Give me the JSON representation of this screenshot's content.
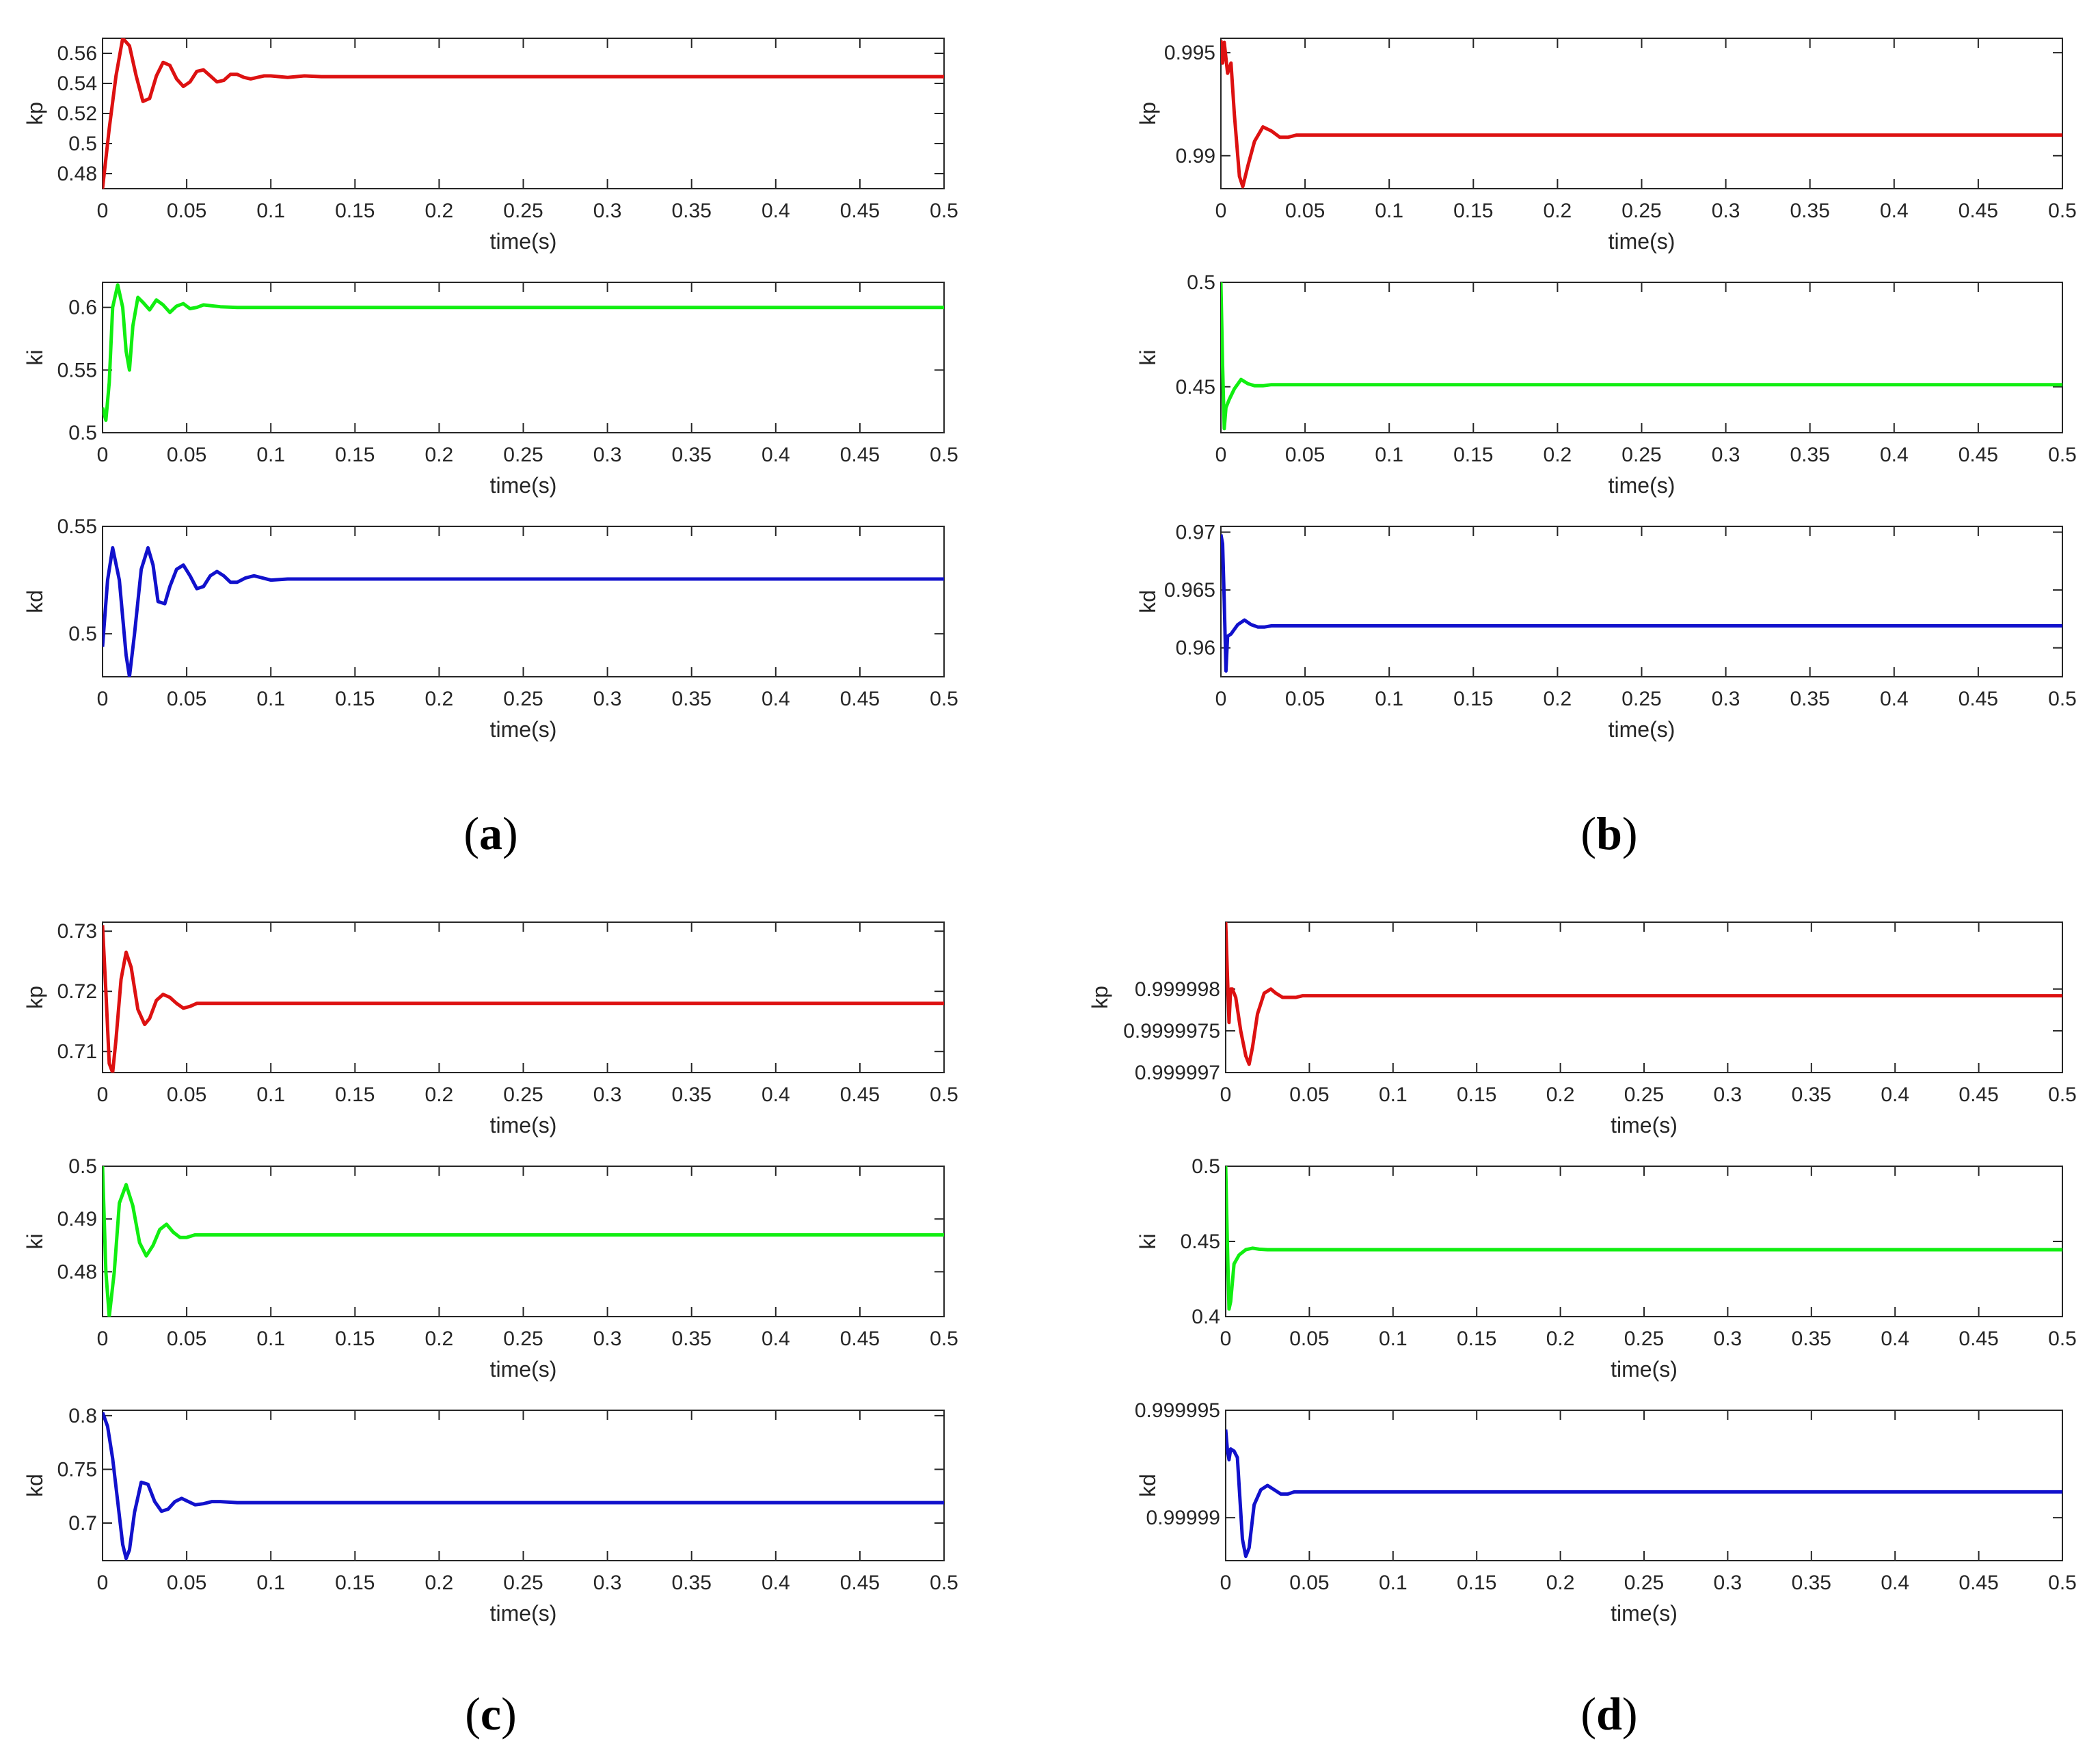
{
  "figure": {
    "xlabel": "time(s)",
    "x_tick_labels": [
      "0",
      "0.05",
      "0.1",
      "0.15",
      "0.2",
      "0.25",
      "0.3",
      "0.35",
      "0.4",
      "0.45",
      "0.5"
    ],
    "colors": {
      "kp": "#dd1111",
      "ki": "#11ee11",
      "kd": "#1111cc",
      "axes": "#262626",
      "background": "#ffffff"
    },
    "panel_labels": [
      "a",
      "b",
      "c",
      "d"
    ]
  },
  "chart_data": [
    {
      "type": "line",
      "panel": "a",
      "ylabel": "kp",
      "xlabel": "time(s)",
      "xlim": [
        0,
        0.5
      ],
      "ylim": [
        0.47,
        0.57
      ],
      "y_ticks": [
        0.48,
        0.5,
        0.52,
        0.54,
        0.56
      ],
      "y_tick_labels": [
        "0.48",
        "0.5",
        "0.52",
        "0.54",
        "0.56"
      ],
      "series": [
        {
          "name": "kp",
          "color": "#dd1111",
          "x": [
            0,
            0.004,
            0.008,
            0.012,
            0.016,
            0.02,
            0.024,
            0.028,
            0.032,
            0.036,
            0.04,
            0.044,
            0.048,
            0.052,
            0.056,
            0.06,
            0.064,
            0.068,
            0.072,
            0.076,
            0.08,
            0.084,
            0.088,
            0.092,
            0.096,
            0.1,
            0.11,
            0.12,
            0.13,
            0.14,
            0.15,
            0.2,
            0.3,
            0.4,
            0.5
          ],
          "y": [
            0.47,
            0.51,
            0.545,
            0.57,
            0.565,
            0.545,
            0.528,
            0.53,
            0.545,
            0.554,
            0.552,
            0.543,
            0.538,
            0.541,
            0.548,
            0.549,
            0.545,
            0.541,
            0.542,
            0.546,
            0.546,
            0.544,
            0.543,
            0.544,
            0.545,
            0.545,
            0.544,
            0.545,
            0.5445,
            0.5445,
            0.5445,
            0.5445,
            0.5445,
            0.5445,
            0.5445
          ]
        }
      ]
    },
    {
      "type": "line",
      "panel": "a",
      "ylabel": "ki",
      "xlabel": "time(s)",
      "xlim": [
        0,
        0.5
      ],
      "ylim": [
        0.5,
        0.62
      ],
      "y_ticks": [
        0.5,
        0.55,
        0.6
      ],
      "y_tick_labels": [
        "0.5",
        "0.55",
        "0.6"
      ],
      "series": [
        {
          "name": "ki",
          "color": "#11ee11",
          "x": [
            0,
            0.002,
            0.004,
            0.006,
            0.009,
            0.012,
            0.014,
            0.016,
            0.018,
            0.021,
            0.024,
            0.028,
            0.032,
            0.036,
            0.04,
            0.044,
            0.048,
            0.052,
            0.056,
            0.06,
            0.07,
            0.08,
            0.1,
            0.15,
            0.2,
            0.3,
            0.4,
            0.5
          ],
          "y": [
            0.52,
            0.51,
            0.54,
            0.6,
            0.618,
            0.6,
            0.565,
            0.55,
            0.585,
            0.608,
            0.604,
            0.598,
            0.606,
            0.602,
            0.596,
            0.601,
            0.603,
            0.599,
            0.6,
            0.602,
            0.6005,
            0.6,
            0.6,
            0.6,
            0.6,
            0.6,
            0.6,
            0.6
          ]
        }
      ]
    },
    {
      "type": "line",
      "panel": "a",
      "ylabel": "kd",
      "xlabel": "time(s)",
      "xlim": [
        0,
        0.5
      ],
      "ylim": [
        0.48,
        0.55
      ],
      "y_ticks": [
        0.5,
        0.55
      ],
      "y_tick_labels": [
        "0.5",
        "0.55"
      ],
      "series": [
        {
          "name": "kd",
          "color": "#1111cc",
          "x": [
            0,
            0.003,
            0.006,
            0.01,
            0.014,
            0.016,
            0.019,
            0.023,
            0.027,
            0.03,
            0.033,
            0.037,
            0.04,
            0.044,
            0.048,
            0.052,
            0.056,
            0.06,
            0.064,
            0.068,
            0.072,
            0.076,
            0.08,
            0.085,
            0.09,
            0.095,
            0.1,
            0.11,
            0.12,
            0.15,
            0.2,
            0.3,
            0.4,
            0.5
          ],
          "y": [
            0.494,
            0.525,
            0.54,
            0.525,
            0.49,
            0.48,
            0.5,
            0.53,
            0.54,
            0.532,
            0.515,
            0.514,
            0.522,
            0.53,
            0.532,
            0.527,
            0.521,
            0.522,
            0.527,
            0.529,
            0.527,
            0.524,
            0.524,
            0.526,
            0.527,
            0.526,
            0.525,
            0.5255,
            0.5255,
            0.5255,
            0.5255,
            0.5255,
            0.5255,
            0.5255
          ]
        }
      ]
    },
    {
      "type": "line",
      "panel": "b",
      "ylabel": "kp",
      "xlabel": "time(s)",
      "xlim": [
        0,
        0.5
      ],
      "ylim": [
        0.9884,
        0.9957
      ],
      "y_ticks": [
        0.99,
        0.995
      ],
      "y_tick_labels": [
        "0.99",
        "0.995"
      ],
      "series": [
        {
          "name": "kp",
          "color": "#dd1111",
          "x": [
            0,
            0.001,
            0.002,
            0.004,
            0.006,
            0.008,
            0.011,
            0.013,
            0.016,
            0.02,
            0.025,
            0.03,
            0.035,
            0.04,
            0.045,
            0.05,
            0.06,
            0.1,
            0.2,
            0.3,
            0.4,
            0.5
          ],
          "y": [
            0.9956,
            0.9945,
            0.9955,
            0.994,
            0.9945,
            0.992,
            0.989,
            0.9885,
            0.9895,
            0.9907,
            0.9914,
            0.9912,
            0.9909,
            0.9909,
            0.991,
            0.991,
            0.991,
            0.991,
            0.991,
            0.991,
            0.991,
            0.991
          ]
        }
      ]
    },
    {
      "type": "line",
      "panel": "b",
      "ylabel": "ki",
      "xlabel": "time(s)",
      "xlim": [
        0,
        0.5
      ],
      "ylim": [
        0.428,
        0.5
      ],
      "y_ticks": [
        0.45,
        0.5
      ],
      "y_tick_labels": [
        "0.45",
        "0.5"
      ],
      "series": [
        {
          "name": "ki",
          "color": "#11ee11",
          "x": [
            0,
            0.001,
            0.002,
            0.003,
            0.005,
            0.008,
            0.012,
            0.016,
            0.02,
            0.025,
            0.03,
            0.04,
            0.05,
            0.1,
            0.2,
            0.3,
            0.4,
            0.5
          ],
          "y": [
            0.5,
            0.46,
            0.43,
            0.44,
            0.444,
            0.449,
            0.4535,
            0.4515,
            0.4505,
            0.4505,
            0.451,
            0.451,
            0.451,
            0.451,
            0.451,
            0.451,
            0.451,
            0.451
          ]
        }
      ]
    },
    {
      "type": "line",
      "panel": "b",
      "ylabel": "kd",
      "xlabel": "time(s)",
      "xlim": [
        0,
        0.5
      ],
      "ylim": [
        0.9575,
        0.9705
      ],
      "y_ticks": [
        0.96,
        0.965,
        0.97
      ],
      "y_tick_labels": [
        "0.96",
        "0.965",
        "0.97"
      ],
      "series": [
        {
          "name": "kd",
          "color": "#1111cc",
          "x": [
            0,
            0.001,
            0.002,
            0.003,
            0.004,
            0.006,
            0.01,
            0.014,
            0.018,
            0.022,
            0.026,
            0.03,
            0.04,
            0.05,
            0.1,
            0.2,
            0.3,
            0.4,
            0.5
          ],
          "y": [
            0.9698,
            0.969,
            0.964,
            0.958,
            0.961,
            0.9612,
            0.962,
            0.9624,
            0.962,
            0.9618,
            0.9618,
            0.9619,
            0.9619,
            0.9619,
            0.9619,
            0.9619,
            0.9619,
            0.9619,
            0.9619
          ]
        }
      ]
    },
    {
      "type": "line",
      "panel": "c",
      "ylabel": "kp",
      "xlabel": "time(s)",
      "xlim": [
        0,
        0.5
      ],
      "ylim": [
        0.7065,
        0.7315
      ],
      "y_ticks": [
        0.71,
        0.72,
        0.73
      ],
      "y_tick_labels": [
        "0.71",
        "0.72",
        "0.73"
      ],
      "series": [
        {
          "name": "kp",
          "color": "#dd1111",
          "x": [
            0,
            0.002,
            0.004,
            0.006,
            0.008,
            0.011,
            0.014,
            0.017,
            0.021,
            0.025,
            0.028,
            0.032,
            0.036,
            0.04,
            0.044,
            0.048,
            0.052,
            0.056,
            0.06,
            0.065,
            0.07,
            0.08,
            0.1,
            0.2,
            0.3,
            0.4,
            0.5
          ],
          "y": [
            0.731,
            0.72,
            0.708,
            0.7065,
            0.712,
            0.722,
            0.7265,
            0.724,
            0.717,
            0.7145,
            0.7155,
            0.7185,
            0.7195,
            0.719,
            0.718,
            0.7172,
            0.7175,
            0.718,
            0.718,
            0.718,
            0.718,
            0.718,
            0.718,
            0.718,
            0.718,
            0.718,
            0.718
          ]
        }
      ]
    },
    {
      "type": "line",
      "panel": "c",
      "ylabel": "ki",
      "xlabel": "time(s)",
      "xlim": [
        0,
        0.5
      ],
      "ylim": [
        0.4715,
        0.5
      ],
      "y_ticks": [
        0.48,
        0.49,
        0.5
      ],
      "y_tick_labels": [
        "0.48",
        "0.49",
        "0.5"
      ],
      "series": [
        {
          "name": "ki",
          "color": "#11ee11",
          "x": [
            0,
            0.002,
            0.004,
            0.007,
            0.01,
            0.014,
            0.018,
            0.022,
            0.026,
            0.03,
            0.034,
            0.038,
            0.042,
            0.046,
            0.05,
            0.055,
            0.06,
            0.07,
            0.08,
            0.1,
            0.2,
            0.3,
            0.4,
            0.5
          ],
          "y": [
            0.5,
            0.48,
            0.4715,
            0.48,
            0.493,
            0.4965,
            0.4925,
            0.4855,
            0.483,
            0.485,
            0.488,
            0.489,
            0.4875,
            0.4865,
            0.4865,
            0.487,
            0.487,
            0.487,
            0.487,
            0.487,
            0.487,
            0.487,
            0.487,
            0.487
          ]
        }
      ]
    },
    {
      "type": "line",
      "panel": "c",
      "ylabel": "kd",
      "xlabel": "time(s)",
      "xlim": [
        0,
        0.5
      ],
      "ylim": [
        0.665,
        0.805
      ],
      "y_ticks": [
        0.7,
        0.75,
        0.8
      ],
      "y_tick_labels": [
        "0.7",
        "0.75",
        "0.8"
      ],
      "series": [
        {
          "name": "kd",
          "color": "#1111cc",
          "x": [
            0,
            0.003,
            0.006,
            0.009,
            0.012,
            0.014,
            0.016,
            0.019,
            0.023,
            0.027,
            0.031,
            0.035,
            0.039,
            0.043,
            0.047,
            0.051,
            0.055,
            0.06,
            0.065,
            0.07,
            0.08,
            0.1,
            0.2,
            0.3,
            0.4,
            0.5
          ],
          "y": [
            0.803,
            0.79,
            0.76,
            0.72,
            0.68,
            0.667,
            0.675,
            0.71,
            0.738,
            0.736,
            0.72,
            0.711,
            0.713,
            0.72,
            0.723,
            0.72,
            0.717,
            0.718,
            0.72,
            0.72,
            0.719,
            0.719,
            0.719,
            0.719,
            0.719,
            0.719
          ]
        }
      ]
    },
    {
      "type": "line",
      "panel": "d",
      "ylabel": "kp",
      "xlabel": "time(s)",
      "xlim": [
        0,
        0.5
      ],
      "ylim": [
        0.999997,
        0.9999988
      ],
      "y_ticks": [
        0.999997,
        0.9999975,
        0.999998
      ],
      "y_tick_labels": [
        "0.999997",
        "0.9999975",
        "0.999998"
      ],
      "series": [
        {
          "name": "kp",
          "color": "#dd1111",
          "x": [
            0,
            0.001,
            0.002,
            0.003,
            0.004,
            0.006,
            0.009,
            0.012,
            0.014,
            0.016,
            0.019,
            0.023,
            0.027,
            0.03,
            0.034,
            0.038,
            0.042,
            0.046,
            0.05,
            0.06,
            0.1,
            0.2,
            0.3,
            0.4,
            0.5
          ],
          "y": [
            0.9999988,
            0.9999982,
            0.9999976,
            0.999998,
            0.999998,
            0.9999979,
            0.9999975,
            0.9999972,
            0.9999971,
            0.9999973,
            0.9999977,
            0.99999795,
            0.999998,
            0.99999795,
            0.9999979,
            0.9999979,
            0.9999979,
            0.99999792,
            0.99999792,
            0.99999792,
            0.99999792,
            0.99999792,
            0.99999792,
            0.99999792,
            0.99999792
          ]
        }
      ]
    },
    {
      "type": "line",
      "panel": "d",
      "ylabel": "ki",
      "xlabel": "time(s)",
      "xlim": [
        0,
        0.5
      ],
      "ylim": [
        0.4,
        0.5
      ],
      "y_ticks": [
        0.4,
        0.45,
        0.5
      ],
      "y_tick_labels": [
        "0.4",
        "0.45",
        "0.5"
      ],
      "series": [
        {
          "name": "ki",
          "color": "#11ee11",
          "x": [
            0,
            0.001,
            0.002,
            0.003,
            0.005,
            0.008,
            0.012,
            0.016,
            0.02,
            0.025,
            0.03,
            0.05,
            0.1,
            0.2,
            0.3,
            0.4,
            0.5
          ],
          "y": [
            0.5,
            0.45,
            0.405,
            0.41,
            0.435,
            0.441,
            0.4445,
            0.4455,
            0.4448,
            0.4445,
            0.4445,
            0.4445,
            0.4445,
            0.4445,
            0.4445,
            0.4445,
            0.4445
          ]
        }
      ]
    },
    {
      "type": "line",
      "panel": "d",
      "ylabel": "kd",
      "xlabel": "time(s)",
      "xlim": [
        0,
        0.5
      ],
      "ylim": [
        0.999988,
        0.999995
      ],
      "y_ticks": [
        0.99999,
        0.999995
      ],
      "y_tick_labels": [
        "0.99999",
        "0.999995"
      ],
      "series": [
        {
          "name": "kd",
          "color": "#1111cc",
          "x": [
            0,
            0.001,
            0.002,
            0.003,
            0.005,
            0.007,
            0.01,
            0.012,
            0.014,
            0.017,
            0.021,
            0.025,
            0.029,
            0.033,
            0.037,
            0.041,
            0.045,
            0.05,
            0.1,
            0.2,
            0.3,
            0.4,
            0.5
          ],
          "y": [
            0.9999941,
            0.9999932,
            0.9999927,
            0.9999932,
            0.9999931,
            0.9999928,
            0.999989,
            0.9999882,
            0.9999886,
            0.9999906,
            0.9999913,
            0.9999915,
            0.9999913,
            0.9999911,
            0.9999911,
            0.9999912,
            0.9999912,
            0.9999912,
            0.9999912,
            0.9999912,
            0.9999912,
            0.9999912,
            0.9999912
          ]
        }
      ]
    }
  ]
}
